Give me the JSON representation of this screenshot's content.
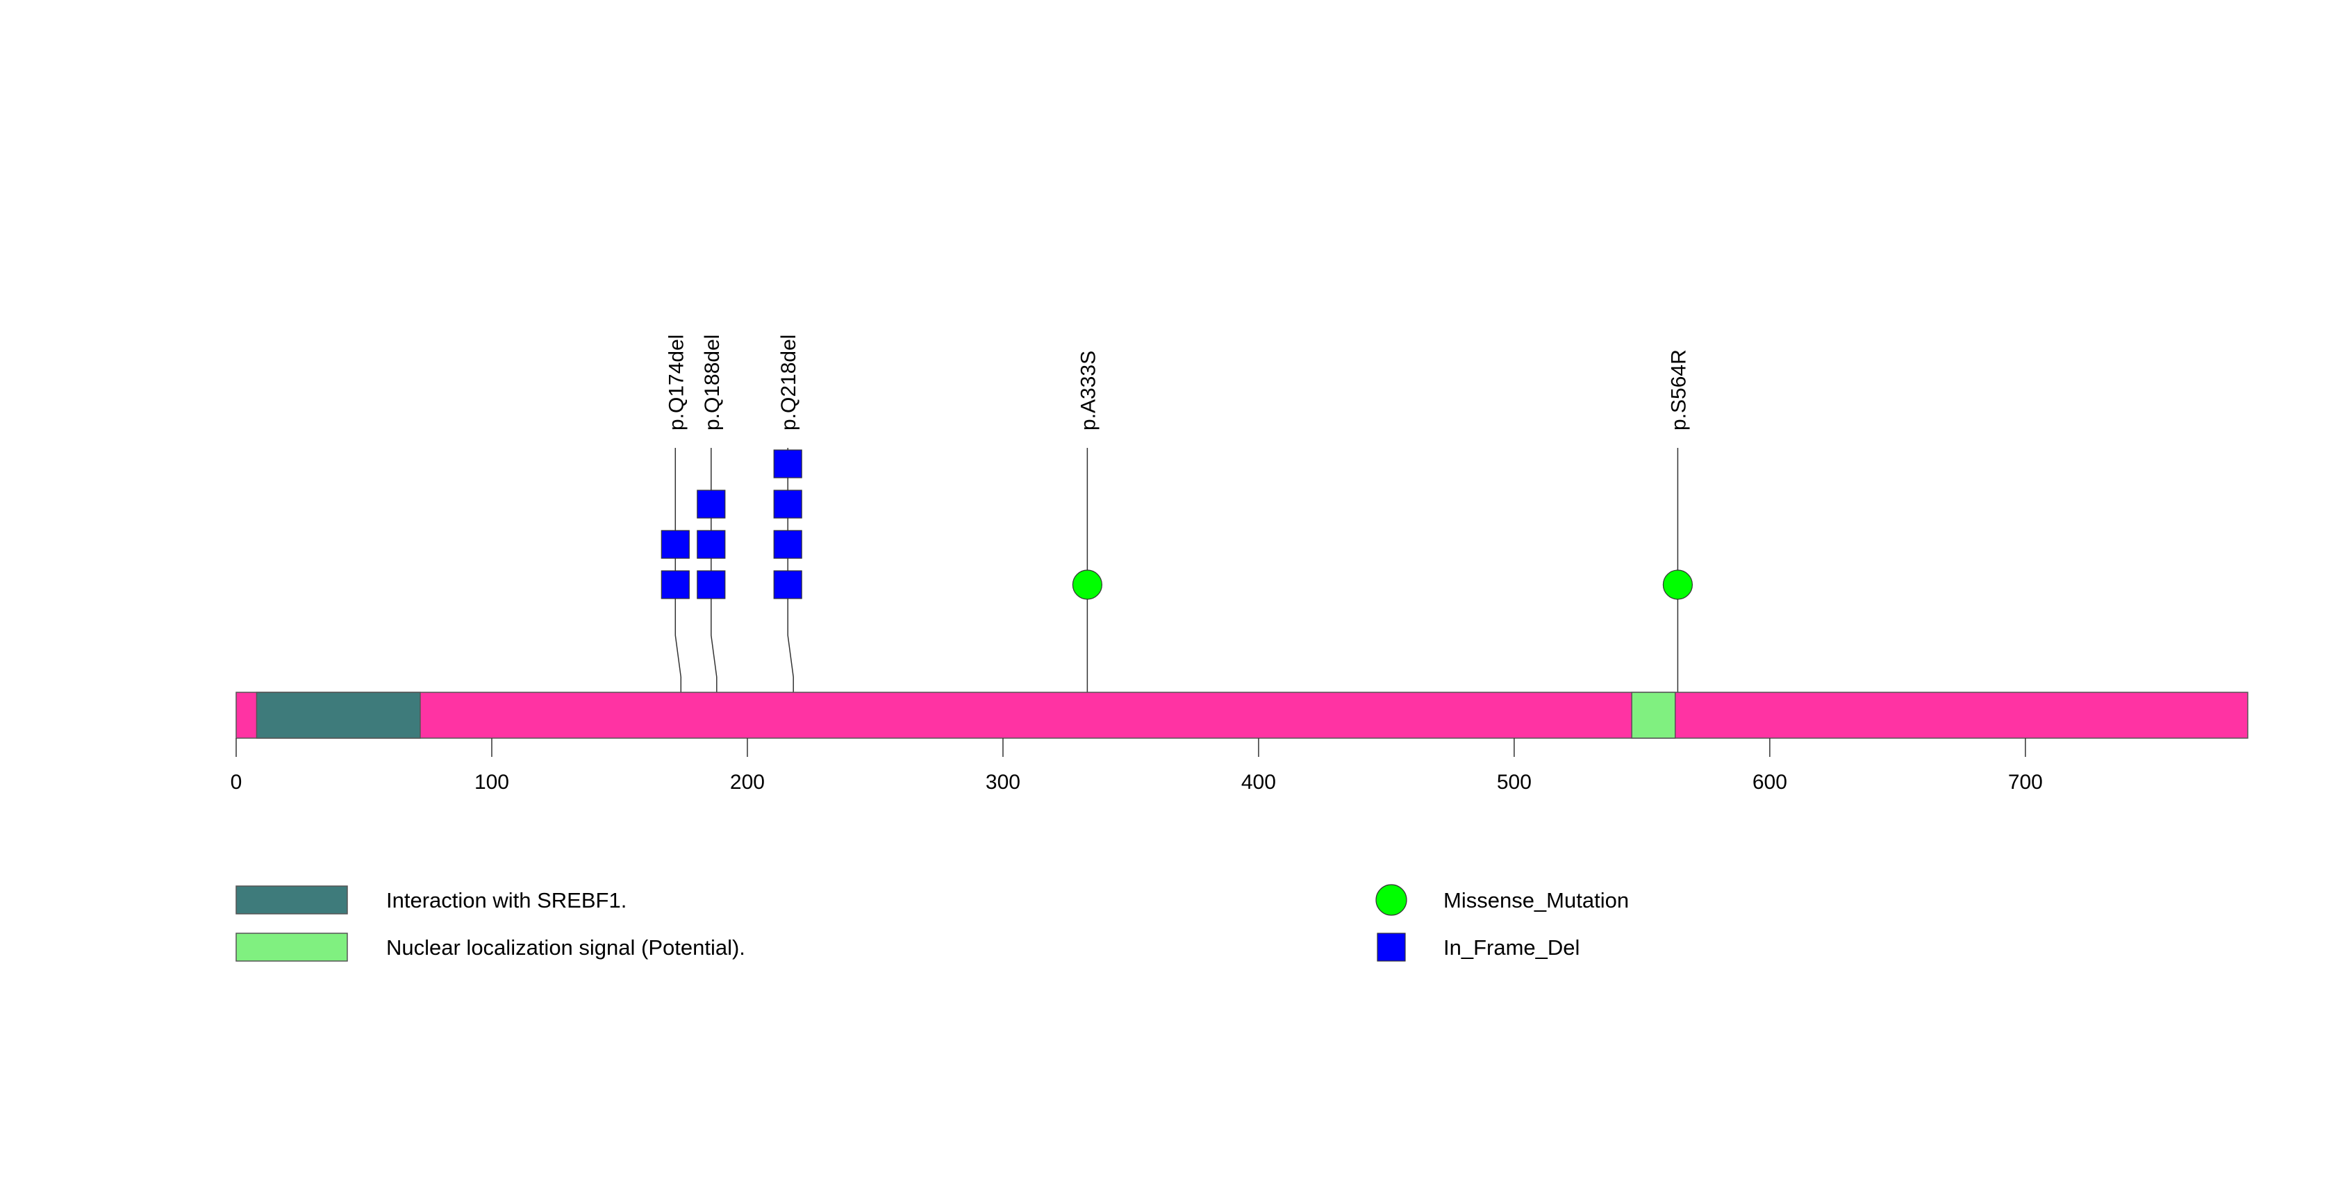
{
  "protein": {
    "length": 787,
    "backbone_color": "#FF33A3"
  },
  "domains": [
    {
      "name": "Interaction with SREBF1.",
      "start": 8,
      "end": 72,
      "color": "#3E7B7B"
    },
    {
      "name": "Nuclear localization signal (Potential).",
      "start": 546,
      "end": 563,
      "color": "#80F080"
    }
  ],
  "axis": {
    "ticks": [
      0,
      100,
      200,
      300,
      400,
      500,
      600,
      700
    ],
    "tick_labels": [
      "0",
      "100",
      "200",
      "300",
      "400",
      "500",
      "600",
      "700"
    ]
  },
  "mutation_types": [
    {
      "name": "Missense_Mutation",
      "shape": "circle",
      "color": "#00FF00"
    },
    {
      "name": "In_Frame_Del",
      "shape": "square",
      "color": "#0000FF"
    }
  ],
  "mutations": [
    {
      "label": "p.Q174del",
      "position": 174,
      "type": "In_Frame_Del",
      "count": 2
    },
    {
      "label": "p.Q188del",
      "position": 188,
      "type": "In_Frame_Del",
      "count": 3
    },
    {
      "label": "p.Q218del",
      "position": 218,
      "type": "In_Frame_Del",
      "count": 4
    },
    {
      "label": "p.A333S",
      "position": 333,
      "type": "Missense_Mutation",
      "count": 1
    },
    {
      "label": "p.S564R",
      "position": 564,
      "type": "Missense_Mutation",
      "count": 1
    }
  ]
}
